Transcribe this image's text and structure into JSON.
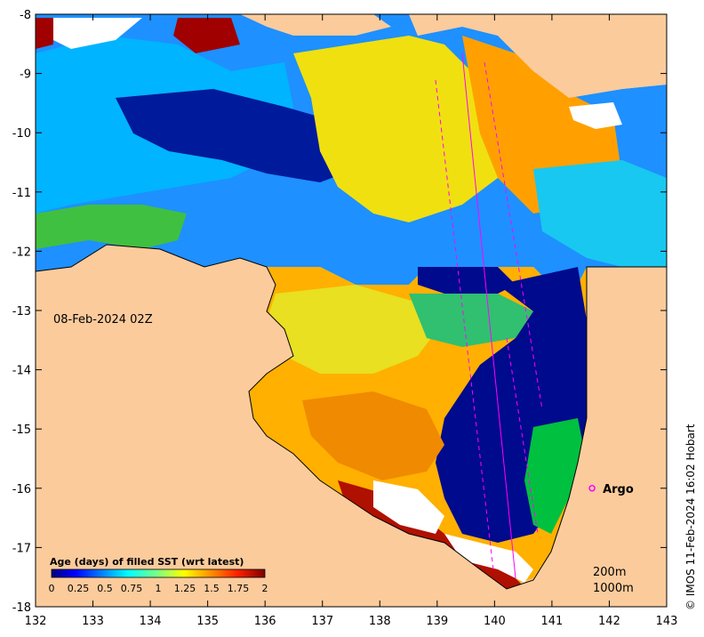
{
  "map": {
    "date_label": "08-Feb-2024 02Z",
    "credit": "© IMOS 11-Feb-2024 16:02 Hobart",
    "x_ticks": [
      "132",
      "133",
      "134",
      "135",
      "136",
      "137",
      "138",
      "139",
      "140",
      "141",
      "142",
      "143"
    ],
    "y_ticks": [
      "-8",
      "-9",
      "-10",
      "-11",
      "-12",
      "-13",
      "-14",
      "-15",
      "-16",
      "-17",
      "-18"
    ],
    "lon_range": [
      132,
      143
    ],
    "lat_range": [
      -18,
      -8
    ],
    "colors": {
      "land": "#fbcb9c",
      "no_data": "#ffffff",
      "argo": "#ff00ff",
      "track": "#ff00ff"
    }
  },
  "legend": {
    "title": "Age (days) of filled SST (wrt latest)",
    "ticks": [
      "0",
      "0.25",
      "0.5",
      "0.75",
      "1",
      "1.25",
      "1.5",
      "1.75",
      "2"
    ],
    "range": [
      0,
      2
    ]
  },
  "markers": {
    "argo": {
      "label": "Argo",
      "lon": 141.7,
      "lat": -16.0
    }
  },
  "depth_labels": [
    "200m",
    "1000m"
  ]
}
